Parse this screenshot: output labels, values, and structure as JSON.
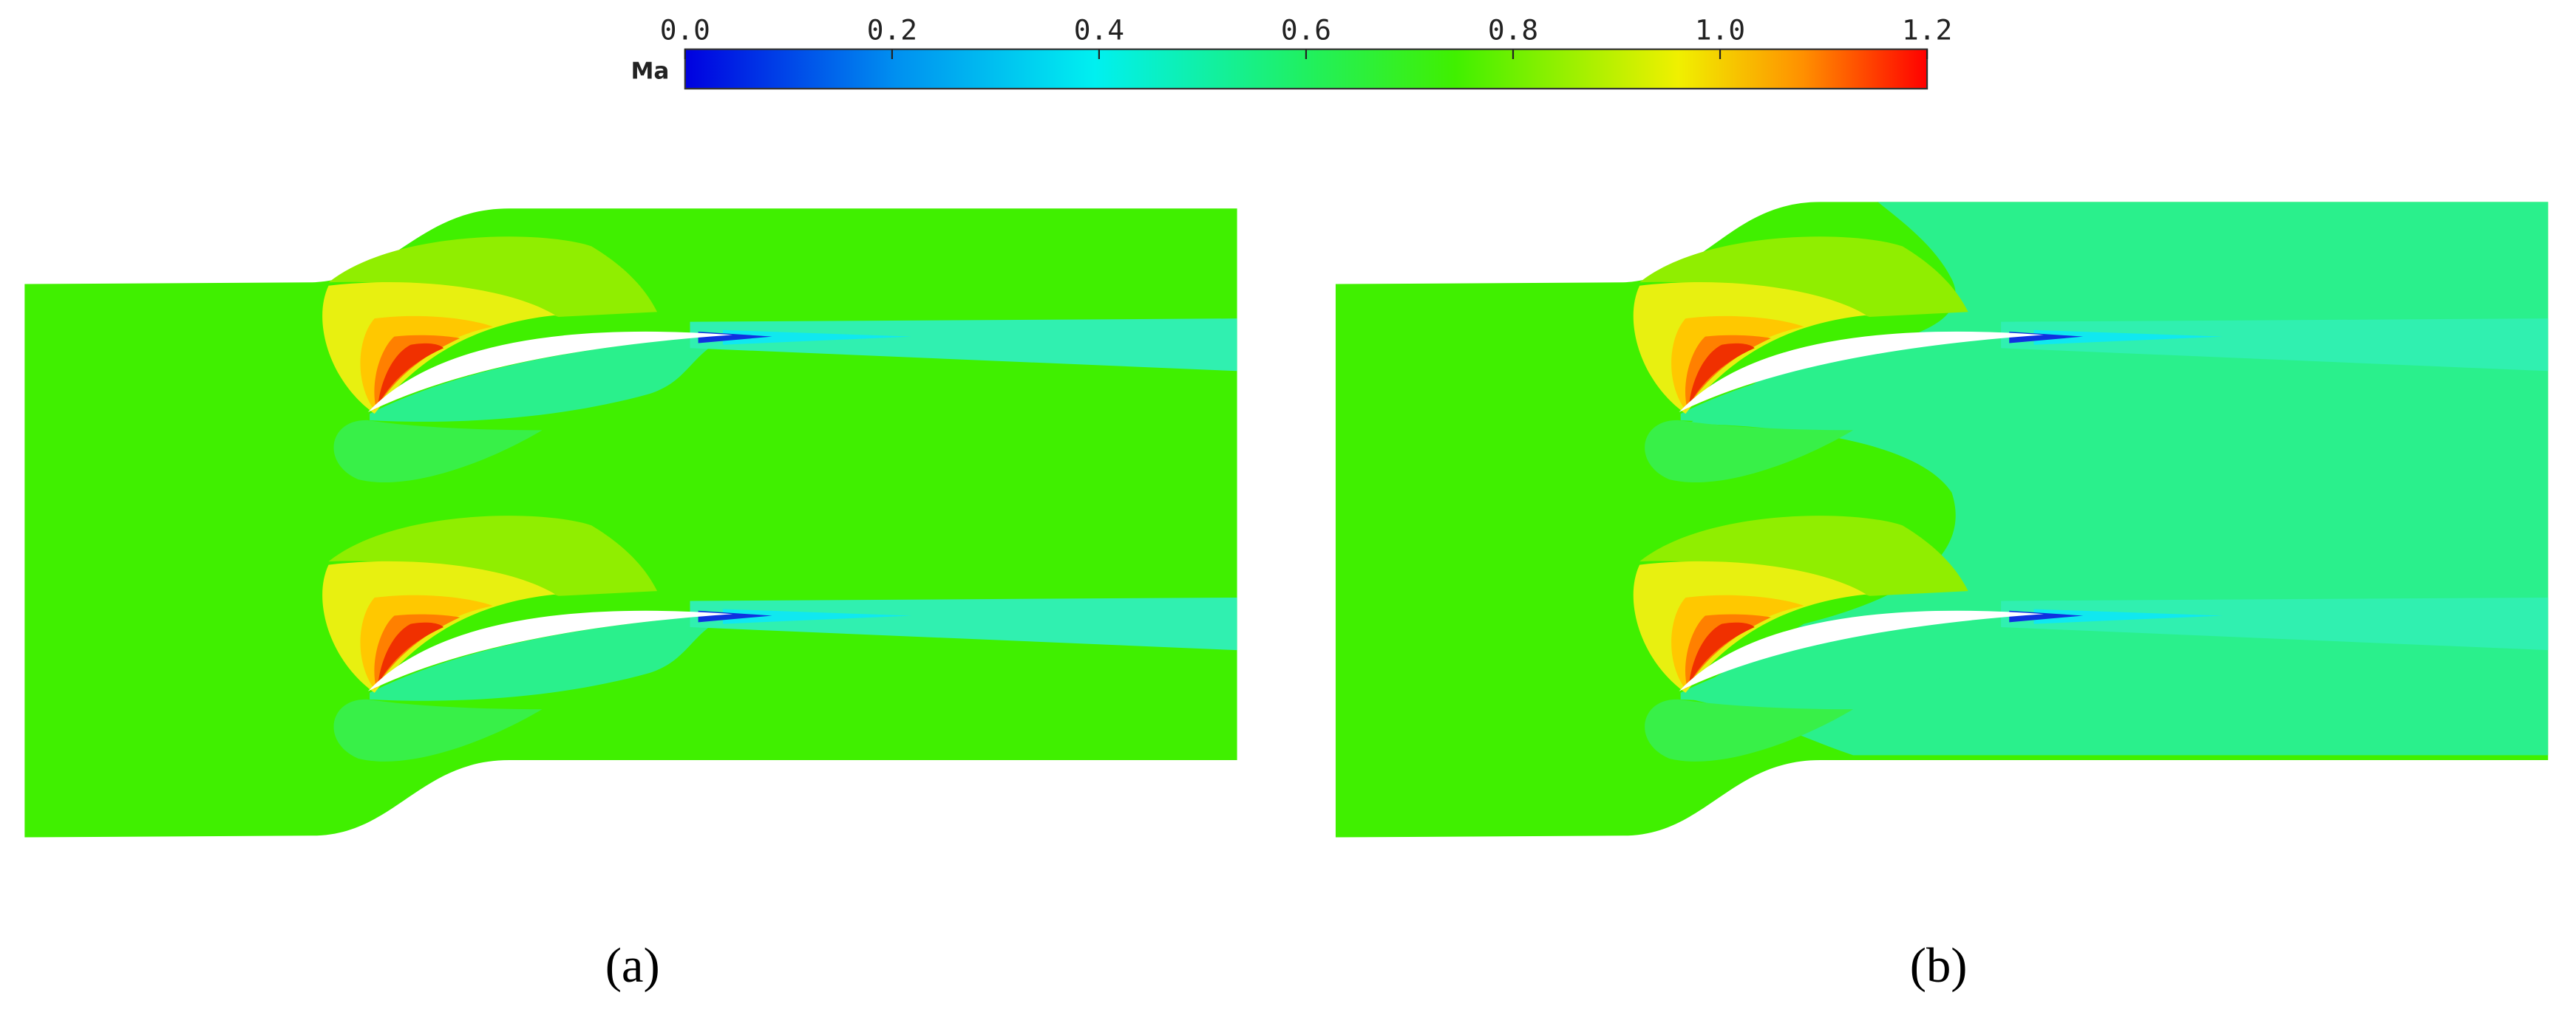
{
  "colorbar": {
    "label": "Ma",
    "ticks": [
      {
        "value": 0,
        "label": "0.0"
      },
      {
        "value": 0.2,
        "label": "0.2"
      },
      {
        "value": 0.4,
        "label": "0.4"
      },
      {
        "value": 0.6,
        "label": "0.6"
      },
      {
        "value": 0.8,
        "label": "0.8"
      },
      {
        "value": 1.0,
        "label": "1.0"
      },
      {
        "value": 1.2,
        "label": "1.2"
      }
    ]
  },
  "panels": [
    {
      "label": "(a)"
    },
    {
      "label": "(b)"
    }
  ]
}
